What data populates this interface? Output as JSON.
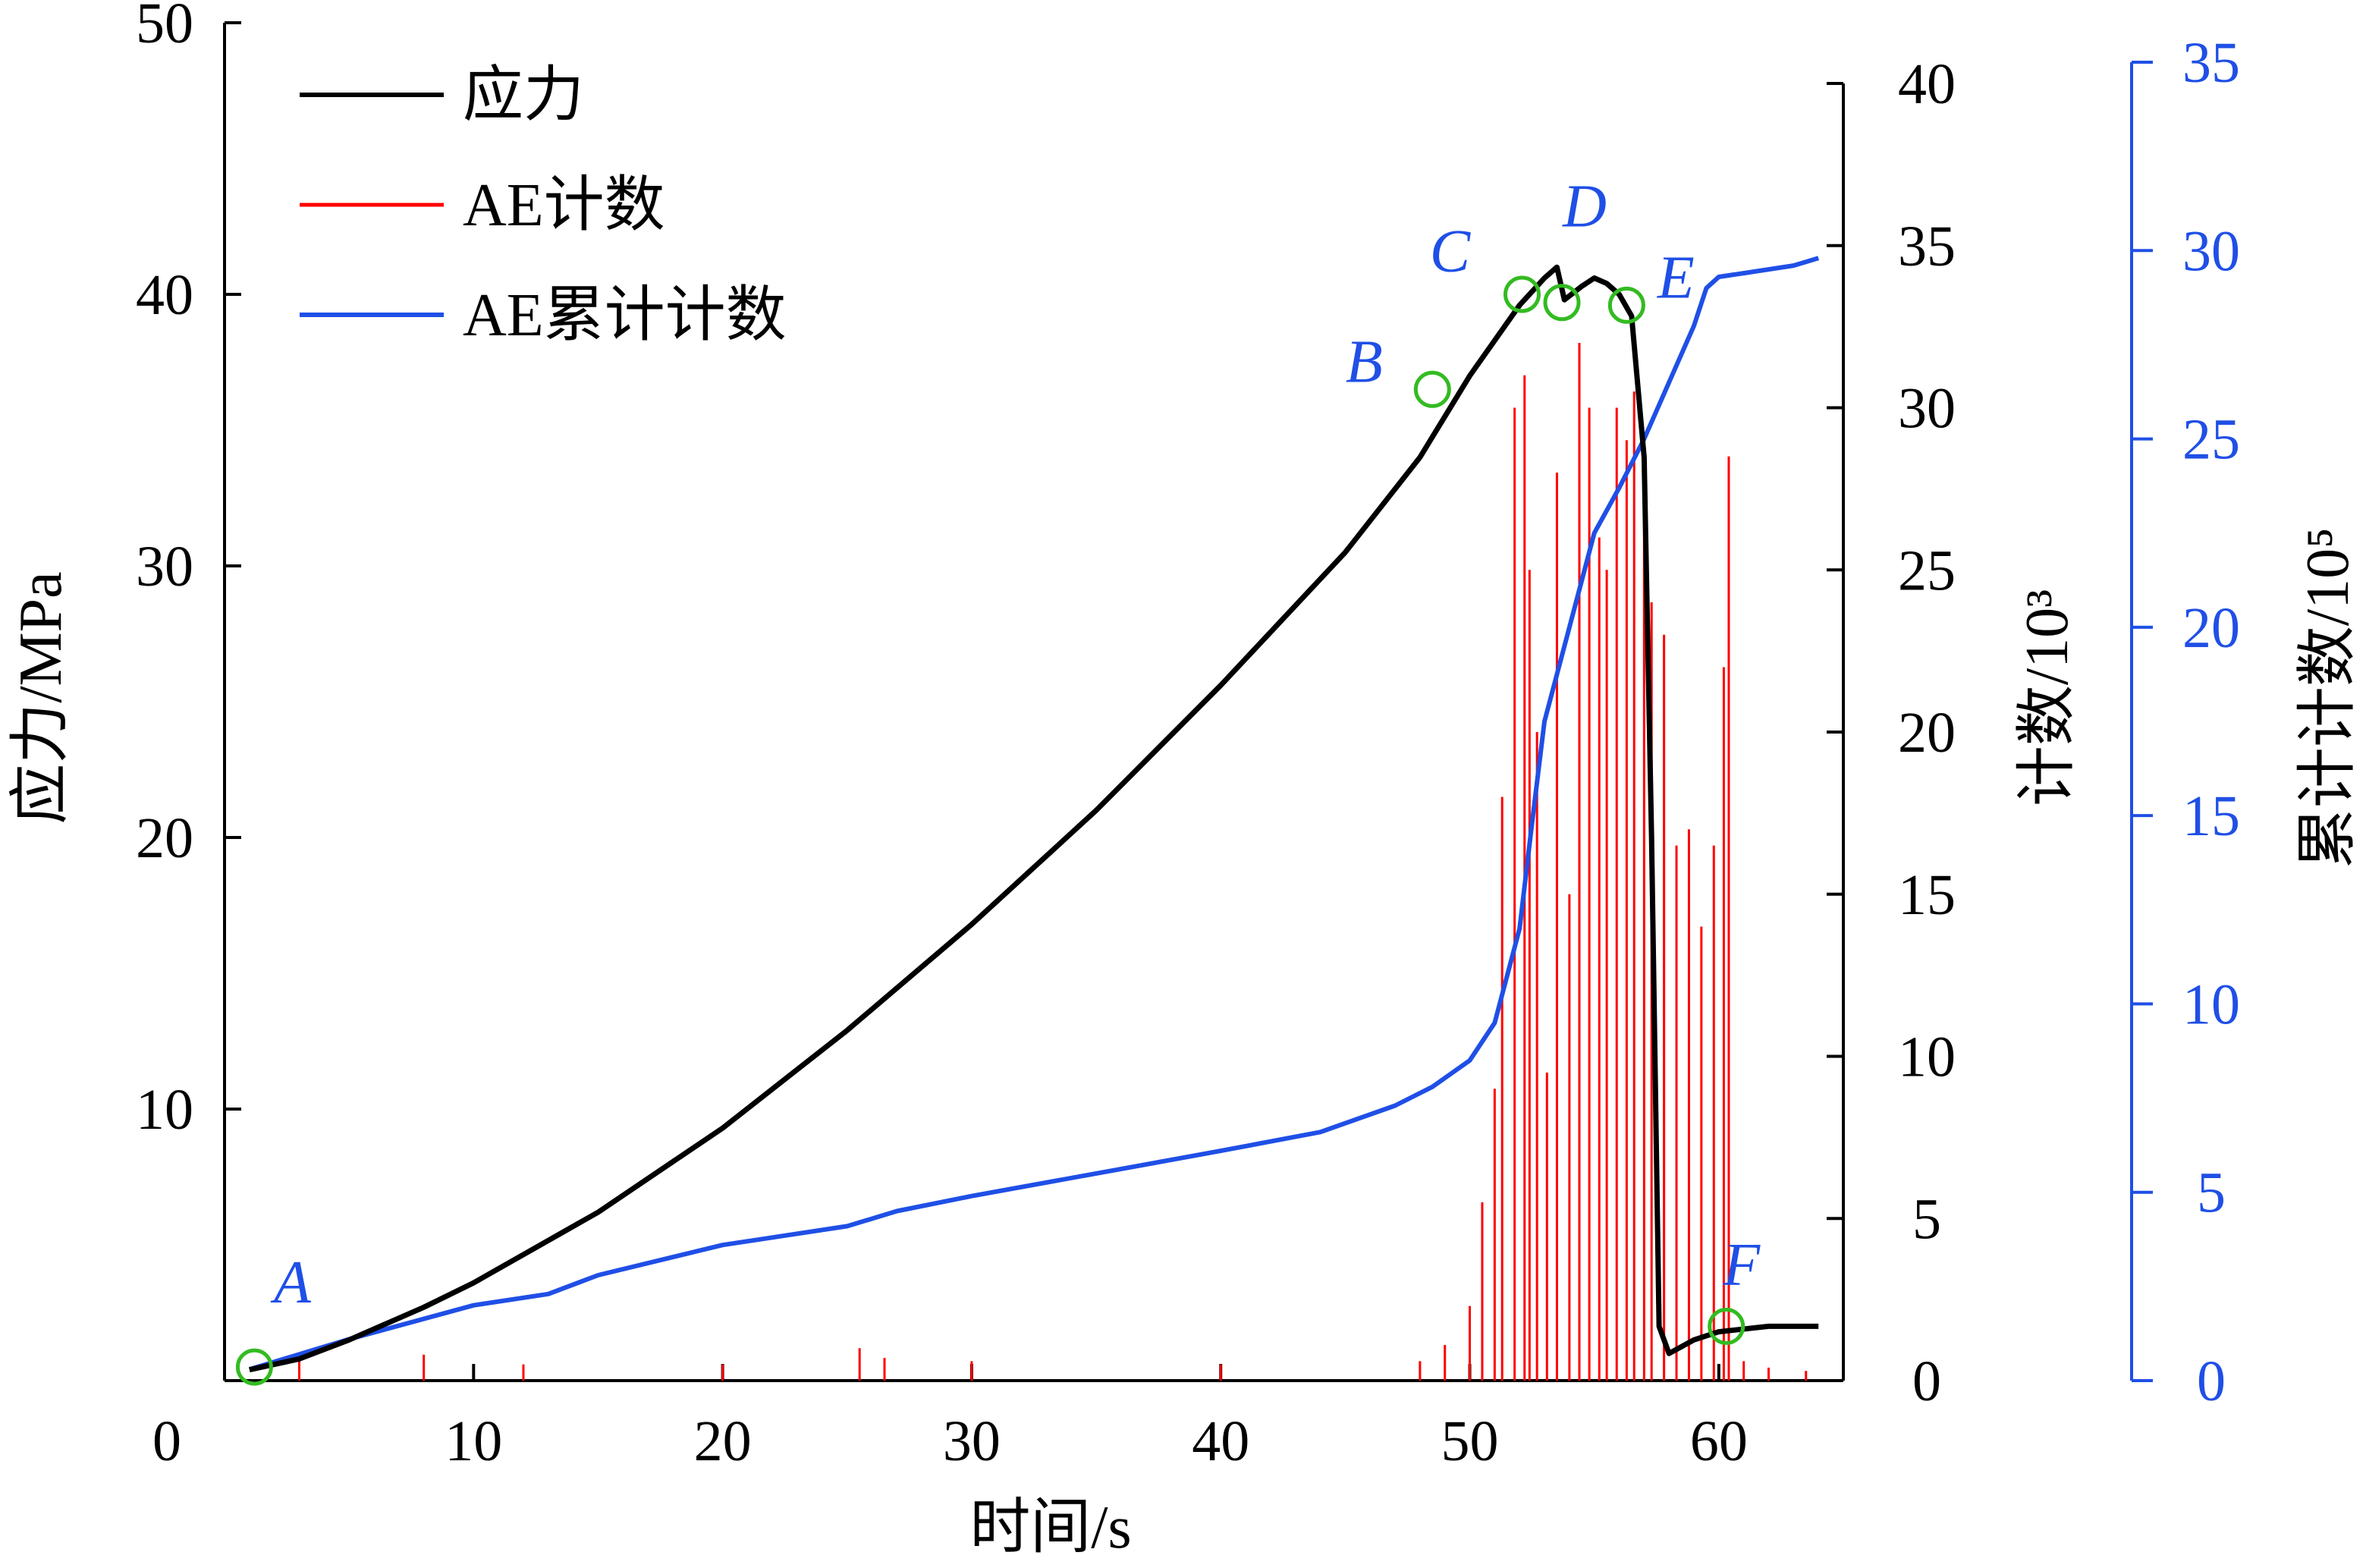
{
  "chart_data": {
    "type": "line",
    "title": "",
    "xlabel": "时间/s",
    "ylabel_left": "应力/MPa",
    "ylabel_right1": "计数/10³",
    "ylabel_right2": "累计计数/10⁵",
    "xlim": [
      0,
      65
    ],
    "ylim_left": [
      0,
      50
    ],
    "ylim_right1": [
      0,
      40
    ],
    "ylim_right2": [
      0,
      35
    ],
    "x_ticks": [
      "0",
      "10",
      "20",
      "30",
      "40",
      "50",
      "60"
    ],
    "y_left_ticks": [
      "10",
      "20",
      "30",
      "40",
      "50"
    ],
    "y_right1_ticks": [
      "0",
      "5",
      "10",
      "15",
      "20",
      "25",
      "30",
      "35",
      "40"
    ],
    "y_right2_ticks": [
      "0",
      "5",
      "10",
      "15",
      "20",
      "25",
      "30",
      "35"
    ],
    "legend_position": "top-left",
    "grid": false,
    "colors": {
      "stress": "#000000",
      "ae_count": "#ff0000",
      "ae_cumulative": "#1f4fe6",
      "markers": "#33bb22",
      "point_labels": "#1f4fe6"
    },
    "series": [
      {
        "name": "应力",
        "axis": "left",
        "x": [
          1,
          3,
          5,
          8,
          10,
          15,
          20,
          25,
          30,
          35,
          40,
          45,
          48,
          50,
          52,
          53,
          53.5,
          53.8,
          54.5,
          55,
          55.5,
          56,
          56.5,
          57,
          57.3,
          57.6,
          58,
          59,
          60,
          62,
          64
        ],
        "y": [
          0.4,
          0.8,
          1.5,
          2.7,
          3.6,
          6.2,
          9.3,
          12.9,
          16.8,
          21.0,
          25.6,
          30.5,
          34.0,
          37.0,
          39.6,
          40.6,
          41.0,
          39.8,
          40.3,
          40.6,
          40.4,
          40.0,
          39.2,
          34.0,
          20.0,
          2.0,
          1.0,
          1.5,
          1.8,
          2.0,
          2.0
        ]
      },
      {
        "name": "AE计数",
        "axis": "right1",
        "x": [
          3,
          8,
          12,
          20,
          25.5,
          26.5,
          30,
          40,
          48,
          49,
          50,
          50.5,
          51,
          51.3,
          51.8,
          52.2,
          52.4,
          52.7,
          53.1,
          53.5,
          54,
          54.4,
          54.8,
          55.2,
          55.5,
          55.9,
          56.3,
          56.6,
          57,
          57.3,
          57.8,
          58.3,
          58.8,
          59.3,
          59.8,
          60.2,
          60.4,
          61,
          62,
          63.5
        ],
        "y": [
          0.6,
          0.8,
          0.5,
          0.5,
          1.0,
          0.7,
          0.6,
          0.5,
          0.6,
          1.1,
          2.3,
          5.5,
          9.0,
          18.0,
          30.0,
          31.0,
          25.0,
          20.0,
          9.5,
          28.0,
          15.0,
          32.0,
          30.0,
          26.0,
          25.0,
          30.0,
          29.0,
          30.5,
          28.0,
          24.0,
          23.0,
          16.5,
          17.0,
          14.0,
          16.5,
          22.0,
          28.5,
          0.6,
          0.4,
          0.3
        ]
      },
      {
        "name": "AE累计计数",
        "axis": "right2",
        "x": [
          1,
          5,
          10,
          13,
          15,
          20,
          25,
          27,
          30,
          35,
          40,
          44,
          47,
          48.5,
          50,
          51,
          52,
          52.5,
          53,
          54,
          55,
          56,
          57,
          58,
          59,
          59.5,
          60,
          61,
          63,
          64
        ],
        "y": [
          0.3,
          1.1,
          2.0,
          2.3,
          2.8,
          3.6,
          4.1,
          4.5,
          4.9,
          5.5,
          6.1,
          6.6,
          7.3,
          7.8,
          8.5,
          9.5,
          12.0,
          14.8,
          17.5,
          20.0,
          22.5,
          23.7,
          25.0,
          26.5,
          28.0,
          29.0,
          29.3,
          29.4,
          29.6,
          29.8
        ]
      }
    ],
    "annotations": [
      {
        "label": "A",
        "x": 1.2,
        "y": 0.5
      },
      {
        "label": "B",
        "x": 48.5,
        "y": 36.5
      },
      {
        "label": "C",
        "x": 52.1,
        "y": 40.0
      },
      {
        "label": "D",
        "x": 53.7,
        "y": 39.7
      },
      {
        "label": "E",
        "x": 56.3,
        "y": 39.6
      },
      {
        "label": "F",
        "x": 60.3,
        "y": 2.0
      }
    ]
  }
}
